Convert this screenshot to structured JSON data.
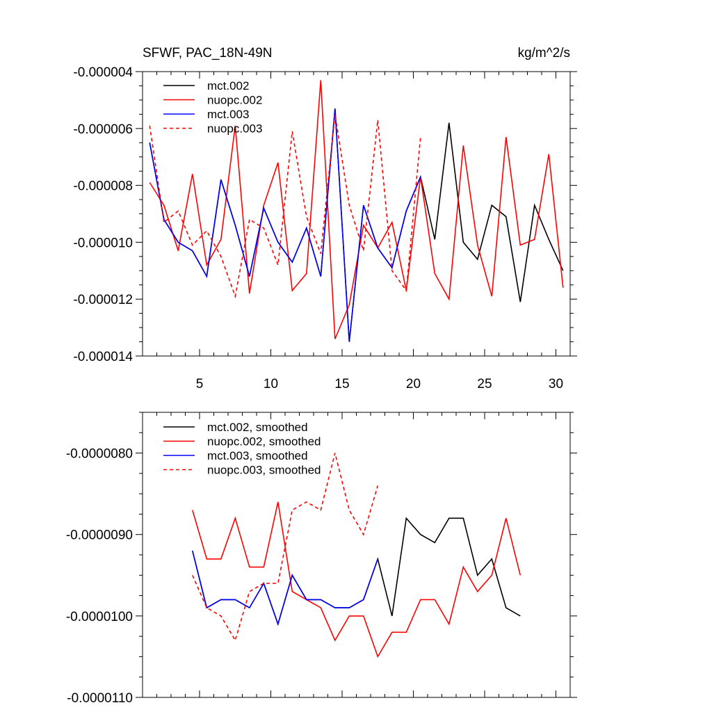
{
  "chart_data": [
    {
      "type": "line",
      "title": "SFWF, PAC_18N-49N",
      "units": "kg/m^2/s",
      "xlim": [
        1,
        31
      ],
      "ylim": [
        -1.4e-05,
        -4e-06
      ],
      "xticks": [
        5,
        10,
        15,
        20,
        25,
        30
      ],
      "xtick_labels": [
        "5",
        "10",
        "15",
        "20",
        "25",
        "30"
      ],
      "yticks": [
        -4e-06,
        -6e-06,
        -8e-06,
        -1e-05,
        -1.2e-05,
        -1.4e-05
      ],
      "ytick_labels": [
        "-0.000004",
        "-0.000006",
        "-0.000008",
        "-0.000010",
        "-0.000012",
        "-0.000014"
      ],
      "legend_position": "top-left",
      "series": [
        {
          "name": "mct.002",
          "color": "#000000",
          "dash": "solid",
          "x": [
            1.5,
            2.5,
            3.5,
            4.5,
            5.5,
            6.5,
            7.5,
            8.5,
            9.5,
            10.5,
            11.5,
            12.5,
            13.5,
            14.5,
            15.5,
            16.5,
            17.5,
            18.5,
            19.5,
            20.5,
            21.5,
            22.5,
            23.5,
            24.5,
            25.5,
            26.5,
            27.5,
            28.5,
            29.5,
            30.5
          ],
          "values": [
            -6.5e-06,
            -9.2e-06,
            -1e-05,
            -1.03e-05,
            -1.12e-05,
            -7.8e-06,
            -9.4e-06,
            -1.12e-05,
            -8.8e-06,
            -1e-05,
            -1.07e-05,
            -9.5e-06,
            -1.12e-05,
            -5.3e-06,
            -1.35e-05,
            -8.7e-06,
            -1.02e-05,
            -1.09e-05,
            -8.9e-06,
            -7.7e-06,
            -9.9e-06,
            -5.8e-06,
            -1e-05,
            -1.06e-05,
            -8.7e-06,
            -9.1e-06,
            -1.21e-05,
            -8.7e-06,
            -9.9e-06,
            -1.1e-05
          ]
        },
        {
          "name": "nuopc.002",
          "color": "#ff0000",
          "dash": "solid",
          "x": [
            1.5,
            2.5,
            3.5,
            4.5,
            5.5,
            6.5,
            7.5,
            8.5,
            9.5,
            10.5,
            11.5,
            12.5,
            13.5,
            14.5,
            15.5,
            16.5,
            17.5,
            18.5,
            19.5,
            20.5,
            21.5,
            22.5,
            23.5,
            24.5,
            25.5,
            26.5,
            27.5,
            28.5,
            29.5,
            30.5
          ],
          "values": [
            -7.9e-06,
            -8.7e-06,
            -1.03e-05,
            -7.6e-06,
            -1.08e-05,
            -9.9e-06,
            -5.9e-06,
            -1.18e-05,
            -8.7e-06,
            -7.2e-06,
            -1.17e-05,
            -1.11e-05,
            -4.3e-06,
            -1.34e-05,
            -1.22e-05,
            -9.4e-06,
            -1.02e-05,
            -9.3e-06,
            -1.17e-05,
            -7.7e-06,
            -1.11e-05,
            -1.2e-05,
            -6.6e-06,
            -1.01e-05,
            -1.19e-05,
            -6.3e-06,
            -1.01e-05,
            -9.9e-06,
            -6.9e-06,
            -1.16e-05
          ]
        },
        {
          "name": "mct.003",
          "color": "#0000ff",
          "dash": "solid",
          "x": [
            1.5,
            2.5,
            3.5,
            4.5,
            5.5,
            6.5,
            7.5,
            8.5,
            9.5,
            10.5,
            11.5,
            12.5,
            13.5,
            14.5,
            15.5,
            16.5,
            17.5,
            18.5,
            19.5,
            20.5
          ],
          "values": [
            -6.5e-06,
            -9.2e-06,
            -1e-05,
            -1.03e-05,
            -1.12e-05,
            -7.8e-06,
            -9.4e-06,
            -1.12e-05,
            -8.8e-06,
            -1e-05,
            -1.07e-05,
            -9.5e-06,
            -1.12e-05,
            -5.3e-06,
            -1.35e-05,
            -8.7e-06,
            -1.02e-05,
            -1.09e-05,
            -8.9e-06,
            -7.7e-06
          ]
        },
        {
          "name": "nuopc.003",
          "color": "#ff0000",
          "dash": "dashed",
          "x": [
            1.5,
            2.5,
            3.5,
            4.5,
            5.5,
            6.5,
            7.5,
            8.5,
            9.5,
            10.5,
            11.5,
            12.5,
            13.5,
            14.5,
            15.5,
            16.5,
            17.5,
            18.5,
            19.5,
            20.5
          ],
          "values": [
            -5.9e-06,
            -9.3e-06,
            -8.9e-06,
            -1.01e-05,
            -9.6e-06,
            -1.05e-05,
            -1.19e-05,
            -9.2e-06,
            -9.5e-06,
            -1.08e-05,
            -6.1e-06,
            -9.1e-06,
            -1.04e-05,
            -5.5e-06,
            -8.7e-06,
            -1.03e-05,
            -5.7e-06,
            -1.1e-05,
            -1.17e-05,
            -6.3e-06
          ]
        }
      ]
    },
    {
      "type": "line",
      "title": "",
      "xlim": [
        1,
        31
      ],
      "ylim": [
        -1.1e-05,
        -7.5e-06
      ],
      "xticks": [
        5,
        10,
        15,
        20,
        25,
        30
      ],
      "yticks": [
        -8e-06,
        -9e-06,
        -1e-05,
        -1.1e-05
      ],
      "ytick_labels": [
        "-0.0000080",
        "-0.0000090",
        "-0.0000100",
        "-0.0000110"
      ],
      "legend_position": "top-left",
      "series": [
        {
          "name": "mct.002, smoothed",
          "color": "#000000",
          "dash": "solid",
          "x": [
            4.5,
            5.5,
            6.5,
            7.5,
            8.5,
            9.5,
            10.5,
            11.5,
            12.5,
            13.5,
            14.5,
            15.5,
            16.5,
            17.5,
            18.5,
            19.5,
            20.5,
            21.5,
            22.5,
            23.5,
            24.5,
            25.5,
            26.5,
            27.5
          ],
          "values": [
            -9.2e-06,
            -9.9e-06,
            -9.8e-06,
            -9.8e-06,
            -9.9e-06,
            -9.6e-06,
            -1.01e-05,
            -9.5e-06,
            -9.8e-06,
            -9.8e-06,
            -9.9e-06,
            -9.9e-06,
            -9.8e-06,
            -9.3e-06,
            -1e-05,
            -8.8e-06,
            -9e-06,
            -9.1e-06,
            -8.8e-06,
            -8.8e-06,
            -9.5e-06,
            -9.3e-06,
            -9.9e-06,
            -1e-05
          ]
        },
        {
          "name": "nuopc.002, smoothed",
          "color": "#ff0000",
          "dash": "solid",
          "x": [
            4.5,
            5.5,
            6.5,
            7.5,
            8.5,
            9.5,
            10.5,
            11.5,
            12.5,
            13.5,
            14.5,
            15.5,
            16.5,
            17.5,
            18.5,
            19.5,
            20.5,
            21.5,
            22.5,
            23.5,
            24.5,
            25.5,
            26.5,
            27.5
          ],
          "values": [
            -8.7e-06,
            -9.3e-06,
            -9.3e-06,
            -8.8e-06,
            -9.4e-06,
            -9.4e-06,
            -8.6e-06,
            -9.7e-06,
            -9.8e-06,
            -9.9e-06,
            -1.03e-05,
            -1e-05,
            -1e-05,
            -1.05e-05,
            -1.02e-05,
            -1.02e-05,
            -9.8e-06,
            -9.8e-06,
            -1.01e-05,
            -9.4e-06,
            -9.7e-06,
            -9.5e-06,
            -8.8e-06,
            -9.5e-06
          ]
        },
        {
          "name": "mct.003, smoothed",
          "color": "#0000ff",
          "dash": "solid",
          "x": [
            4.5,
            5.5,
            6.5,
            7.5,
            8.5,
            9.5,
            10.5,
            11.5,
            12.5,
            13.5,
            14.5,
            15.5,
            16.5,
            17.5
          ],
          "values": [
            -9.2e-06,
            -9.9e-06,
            -9.8e-06,
            -9.8e-06,
            -9.9e-06,
            -9.6e-06,
            -1.01e-05,
            -9.5e-06,
            -9.8e-06,
            -9.8e-06,
            -9.9e-06,
            -9.9e-06,
            -9.8e-06,
            -9.3e-06
          ]
        },
        {
          "name": "nuopc.003, smoothed",
          "color": "#ff0000",
          "dash": "dashed",
          "x": [
            4.5,
            5.5,
            6.5,
            7.5,
            8.5,
            9.5,
            10.5,
            11.5,
            12.5,
            13.5,
            14.5,
            15.5,
            16.5,
            17.5
          ],
          "values": [
            -9.5e-06,
            -9.9e-06,
            -1e-05,
            -1.03e-05,
            -9.7e-06,
            -9.6e-06,
            -9.6e-06,
            -8.7e-06,
            -8.6e-06,
            -8.7e-06,
            -8e-06,
            -8.7e-06,
            -9e-06,
            -8.4e-06
          ]
        }
      ]
    }
  ]
}
